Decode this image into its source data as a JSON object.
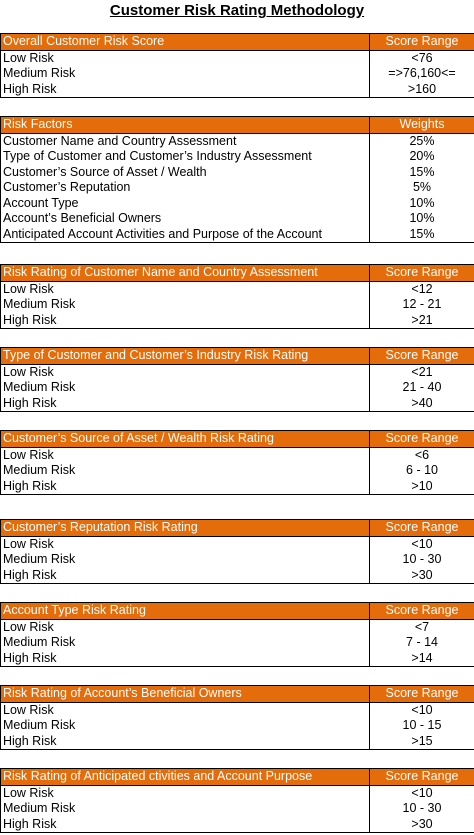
{
  "title": "Customer Risk Rating Methodology",
  "tables": [
    {
      "header": [
        "Overall Customer Risk Score",
        "Score Range"
      ],
      "rows": [
        [
          "Low Risk",
          "<76"
        ],
        [
          "Medium Risk",
          "=>76,160<="
        ],
        [
          "High Risk",
          ">160"
        ]
      ]
    },
    {
      "header": [
        "Risk Factors",
        "Weights"
      ],
      "rows": [
        [
          "Customer Name and Country Assessment",
          "25%"
        ],
        [
          "Type of Customer and Customer’s Industry Assessment",
          "20%"
        ],
        [
          "Customer’s Source of Asset / Wealth",
          "15%"
        ],
        [
          "Customer’s Reputation",
          "5%"
        ],
        [
          "Account Type",
          "10%"
        ],
        [
          "Account’s Beneficial Owners",
          "10%"
        ],
        [
          "Anticipated Account Activities and Purpose of the Account",
          "15%"
        ]
      ]
    },
    {
      "header": [
        "Risk Rating of Customer Name and Country Assessment",
        "Score Range"
      ],
      "rows": [
        [
          "Low Risk",
          "<12"
        ],
        [
          "Medium Risk",
          "12 - 21"
        ],
        [
          "High Risk",
          ">21"
        ]
      ]
    },
    {
      "header": [
        "Type of Customer and Customer’s Industry Risk Rating",
        "Score Range"
      ],
      "rows": [
        [
          "Low Risk",
          "<21"
        ],
        [
          "Medium Risk",
          "21 - 40"
        ],
        [
          "High Risk",
          ">40"
        ]
      ]
    },
    {
      "header": [
        "Customer’s Source of Asset / Wealth Risk Rating",
        "Score Range"
      ],
      "rows": [
        [
          "Low Risk",
          "<6"
        ],
        [
          "Medium Risk",
          "6 - 10"
        ],
        [
          "High Risk",
          ">10"
        ]
      ]
    },
    {
      "header": [
        "Customer’s Reputation Risk Rating",
        "Score Range"
      ],
      "rows": [
        [
          "Low Risk",
          "<10"
        ],
        [
          "Medium Risk",
          "10 - 30"
        ],
        [
          "High Risk",
          ">30"
        ]
      ]
    },
    {
      "header": [
        "Account Type Risk Rating",
        "Score Range"
      ],
      "rows": [
        [
          "Low Risk",
          "<7"
        ],
        [
          "Medium Risk",
          "7 - 14"
        ],
        [
          "High Risk",
          ">14"
        ]
      ]
    },
    {
      "header": [
        "Risk Rating of Account’s Beneficial Owners",
        "Score Range"
      ],
      "rows": [
        [
          "Low Risk",
          "<10"
        ],
        [
          "Medium Risk",
          "10 - 15"
        ],
        [
          "High Risk",
          ">15"
        ]
      ]
    },
    {
      "header": [
        "Risk Rating of Anticipated ctivities and Account Purpose",
        "Score Range"
      ],
      "rows": [
        [
          "Low Risk",
          "<10"
        ],
        [
          "Medium Risk",
          "10 - 30"
        ],
        [
          "High Risk",
          ">30"
        ]
      ]
    }
  ]
}
